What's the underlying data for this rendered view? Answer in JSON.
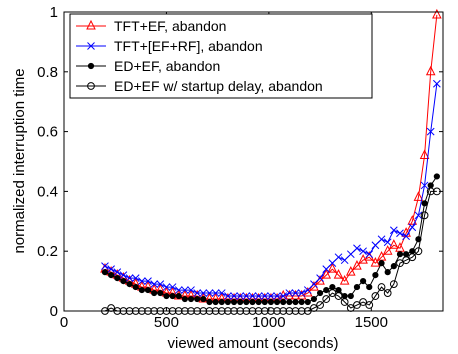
{
  "chart_data": {
    "type": "line",
    "title": "",
    "xlabel": "viewed amount (seconds)",
    "ylabel": "normalized interruption time",
    "xlim": [
      0,
      1850
    ],
    "ylim": [
      0,
      1
    ],
    "xticks": [
      0,
      500,
      1000,
      1500
    ],
    "yticks": [
      0,
      0.2,
      0.4,
      0.6,
      0.8,
      1
    ],
    "grid": false,
    "legend_position": "top-left",
    "series": [
      {
        "name": "TFT+EF, abandon",
        "color": "#ff0000",
        "marker": "triangle",
        "x": [
          200,
          230,
          260,
          290,
          320,
          350,
          380,
          410,
          440,
          470,
          500,
          530,
          560,
          590,
          620,
          650,
          680,
          710,
          740,
          770,
          800,
          830,
          860,
          890,
          920,
          950,
          980,
          1010,
          1040,
          1070,
          1100,
          1130,
          1160,
          1190,
          1220,
          1250,
          1280,
          1310,
          1340,
          1370,
          1400,
          1430,
          1460,
          1490,
          1520,
          1550,
          1580,
          1610,
          1640,
          1670,
          1700,
          1730,
          1760,
          1790,
          1820
        ],
        "y": [
          0.14,
          0.13,
          0.12,
          0.11,
          0.1,
          0.09,
          0.08,
          0.08,
          0.07,
          0.07,
          0.06,
          0.06,
          0.05,
          0.05,
          0.05,
          0.05,
          0.04,
          0.04,
          0.04,
          0.04,
          0.04,
          0.04,
          0.04,
          0.04,
          0.04,
          0.04,
          0.04,
          0.04,
          0.04,
          0.05,
          0.05,
          0.05,
          0.05,
          0.06,
          0.08,
          0.1,
          0.12,
          0.14,
          0.12,
          0.1,
          0.13,
          0.15,
          0.17,
          0.18,
          0.16,
          0.18,
          0.2,
          0.22,
          0.21,
          0.26,
          0.3,
          0.38,
          0.52,
          0.8,
          0.99
        ]
      },
      {
        "name": "TFT+[EF+RF], abandon",
        "color": "#0000ff",
        "marker": "x",
        "x": [
          200,
          230,
          260,
          290,
          320,
          350,
          380,
          410,
          440,
          470,
          500,
          530,
          560,
          590,
          620,
          650,
          680,
          710,
          740,
          770,
          800,
          830,
          860,
          890,
          920,
          950,
          980,
          1010,
          1040,
          1070,
          1100,
          1130,
          1160,
          1190,
          1220,
          1250,
          1280,
          1310,
          1340,
          1370,
          1400,
          1430,
          1460,
          1490,
          1520,
          1550,
          1580,
          1610,
          1640,
          1670,
          1700,
          1730,
          1760,
          1790,
          1820
        ],
        "y": [
          0.15,
          0.14,
          0.13,
          0.12,
          0.11,
          0.11,
          0.1,
          0.1,
          0.09,
          0.09,
          0.08,
          0.08,
          0.07,
          0.07,
          0.07,
          0.06,
          0.06,
          0.06,
          0.06,
          0.06,
          0.05,
          0.05,
          0.05,
          0.05,
          0.05,
          0.05,
          0.05,
          0.05,
          0.05,
          0.05,
          0.06,
          0.06,
          0.06,
          0.07,
          0.09,
          0.11,
          0.14,
          0.16,
          0.18,
          0.17,
          0.19,
          0.21,
          0.2,
          0.19,
          0.22,
          0.24,
          0.23,
          0.27,
          0.26,
          0.25,
          0.28,
          0.32,
          0.42,
          0.6,
          0.76
        ]
      },
      {
        "name": "ED+EF, abandon",
        "color": "#000000",
        "marker": "filled-circle",
        "x": [
          200,
          230,
          260,
          290,
          320,
          350,
          380,
          410,
          440,
          470,
          500,
          530,
          560,
          590,
          620,
          650,
          680,
          710,
          740,
          770,
          800,
          830,
          860,
          890,
          920,
          950,
          980,
          1010,
          1040,
          1070,
          1100,
          1130,
          1160,
          1190,
          1220,
          1250,
          1280,
          1310,
          1340,
          1370,
          1400,
          1430,
          1460,
          1490,
          1520,
          1550,
          1580,
          1610,
          1640,
          1670,
          1700,
          1730,
          1760,
          1790,
          1820
        ],
        "y": [
          0.13,
          0.12,
          0.11,
          0.1,
          0.09,
          0.08,
          0.07,
          0.07,
          0.06,
          0.06,
          0.05,
          0.05,
          0.05,
          0.04,
          0.04,
          0.04,
          0.04,
          0.03,
          0.03,
          0.03,
          0.03,
          0.03,
          0.03,
          0.03,
          0.03,
          0.03,
          0.03,
          0.03,
          0.03,
          0.03,
          0.03,
          0.03,
          0.03,
          0.03,
          0.04,
          0.06,
          0.07,
          0.08,
          0.07,
          0.05,
          0.05,
          0.08,
          0.1,
          0.08,
          0.12,
          0.16,
          0.13,
          0.15,
          0.19,
          0.19,
          0.2,
          0.24,
          0.36,
          0.42,
          0.45
        ]
      },
      {
        "name": "ED+EF w/ startup delay, abandon",
        "color": "#000000",
        "marker": "open-circle",
        "x": [
          200,
          230,
          260,
          290,
          320,
          350,
          380,
          410,
          440,
          470,
          500,
          530,
          560,
          590,
          620,
          650,
          680,
          710,
          740,
          770,
          800,
          830,
          860,
          890,
          920,
          950,
          980,
          1010,
          1040,
          1070,
          1100,
          1130,
          1160,
          1190,
          1220,
          1250,
          1280,
          1310,
          1340,
          1370,
          1400,
          1430,
          1460,
          1490,
          1520,
          1550,
          1580,
          1610,
          1640,
          1670,
          1700,
          1730,
          1760,
          1790,
          1820
        ],
        "y": [
          0.0,
          0.01,
          0.0,
          0.0,
          0.0,
          0.0,
          0.0,
          0.0,
          0.0,
          0.0,
          0.0,
          0.0,
          0.0,
          0.0,
          0.0,
          0.0,
          0.0,
          0.0,
          0.0,
          0.0,
          0.0,
          0.0,
          0.0,
          0.0,
          0.0,
          0.0,
          0.0,
          0.0,
          0.0,
          0.0,
          0.0,
          0.0,
          0.0,
          0.0,
          0.01,
          0.02,
          0.04,
          0.06,
          0.05,
          0.03,
          0.01,
          0.02,
          0.03,
          0.02,
          0.05,
          0.08,
          0.06,
          0.09,
          0.16,
          0.17,
          0.18,
          0.2,
          0.32,
          0.4,
          0.4
        ]
      }
    ]
  }
}
